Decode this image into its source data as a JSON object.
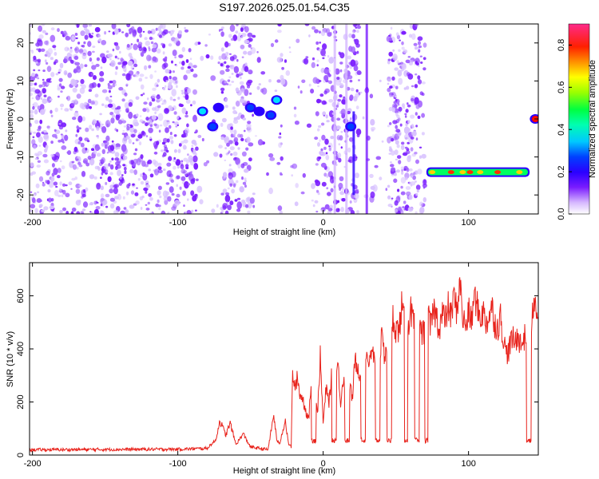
{
  "title": "S197.2026.025.01.54.C35",
  "chart_data": [
    {
      "type": "heatmap",
      "name": "spectrogram",
      "xlabel": "Height of straight line (km)",
      "ylabel": "Frequency (Hz)",
      "xlim": [
        -202,
        148
      ],
      "ylim": [
        -25,
        25
      ],
      "xticks": [
        -200,
        -100,
        0,
        100
      ],
      "yticks": [
        -20,
        -10,
        0,
        10,
        20
      ],
      "colorbar": {
        "label": "Normalized spectral amplitude",
        "range": [
          0.0,
          0.9
        ],
        "ticks": [
          "0.0",
          "0.2",
          "0.4",
          "0.6",
          "0.8"
        ],
        "tick_values": [
          0.0,
          0.2,
          0.4,
          0.6,
          0.8
        ]
      },
      "colormap": [
        "#ffffff",
        "#d6b8ff",
        "#7a1cff",
        "#2a00ff",
        "#0040ff",
        "#00e0ff",
        "#00ff40",
        "#d0ff00",
        "#ff9000",
        "#ff0000",
        "#ff2a8a"
      ],
      "noise_region": {
        "x_from": -202,
        "x_to": 70,
        "max_amplitude": 0.12
      },
      "blank_bands": [
        [
          -87,
          -70
        ],
        [
          -50,
          -30
        ],
        [
          -28,
          -5
        ],
        [
          25,
          45
        ]
      ],
      "features": [
        {
          "name": "blob-1",
          "x": -83,
          "y": 2,
          "amplitude": 0.45
        },
        {
          "name": "blob-2",
          "x": -76,
          "y": -2,
          "amplitude": 0.35
        },
        {
          "name": "blob-3",
          "x": -72,
          "y": 3,
          "amplitude": 0.3
        },
        {
          "name": "blob-4",
          "x": -50,
          "y": 3,
          "amplitude": 0.35
        },
        {
          "name": "blob-5",
          "x": -44,
          "y": 2,
          "amplitude": 0.3
        },
        {
          "name": "blob-6",
          "x": -36,
          "y": 1,
          "amplitude": 0.4
        },
        {
          "name": "blob-7",
          "x": -32,
          "y": 5,
          "amplitude": 0.45
        },
        {
          "name": "blob-8",
          "x": 19,
          "y": -2,
          "amplitude": 0.4
        },
        {
          "name": "blob-9",
          "x": 146,
          "y": 0,
          "amplitude": 0.8
        }
      ],
      "band": {
        "x_from": 71,
        "x_to": 142,
        "y": -14,
        "amplitude": 0.55,
        "hot_x": [
          75,
          88,
          96,
          101,
          108,
          120,
          135
        ]
      },
      "streaks": [
        {
          "x": 21,
          "from": 2,
          "to": -20,
          "amplitude": 0.25
        },
        {
          "x": 30,
          "from": 25,
          "to": -25,
          "amplitude": 0.15
        },
        {
          "x": 8,
          "from": 25,
          "to": -25,
          "amplitude": 0.12
        },
        {
          "x": 16,
          "from": 25,
          "to": -25,
          "amplitude": 0.12
        }
      ]
    },
    {
      "type": "line",
      "name": "snr",
      "xlabel": "Height of straight line (km)",
      "ylabel": "SNR (10 * v/v)",
      "xlim": [
        -202,
        148
      ],
      "ylim": [
        0,
        725
      ],
      "xticks": [
        -200,
        -100,
        0,
        100
      ],
      "yticks": [
        0,
        200,
        400,
        600
      ],
      "color": "#e8231c",
      "series": [
        {
          "name": "SNR",
          "segments": [
            [
              [
                -202,
                20
              ],
              [
                -100,
                22
              ],
              [
                -80,
                25
              ],
              [
                -74,
                55
              ],
              [
                -71,
                130
              ],
              [
                -67,
                75
              ],
              [
                -64,
                120
              ],
              [
                -60,
                40
              ],
              [
                -55,
                80
              ],
              [
                -50,
                30
              ],
              [
                -40,
                22
              ],
              [
                -38,
                20
              ],
              [
                -34,
                150
              ],
              [
                -32,
                60
              ],
              [
                -30,
                40
              ],
              [
                -28,
                90
              ],
              [
                -26,
                130
              ],
              [
                -24,
                45
              ],
              [
                -22,
                30
              ],
              [
                -21,
                310
              ],
              [
                -19,
                240
              ],
              [
                -18,
                300
              ],
              [
                -16,
                230
              ],
              [
                -14,
                210
              ],
              [
                -12,
                170
              ],
              [
                -10,
                130
              ],
              [
                -8,
                300
              ],
              [
                -6,
                240
              ],
              [
                -4,
                150
              ],
              [
                -2,
                370
              ],
              [
                0,
                120
              ],
              [
                2,
                250
              ],
              [
                4,
                200
              ],
              [
                6,
                310
              ],
              [
                8,
                220
              ],
              [
                10,
                350
              ],
              [
                12,
                200
              ],
              [
                14,
                300
              ],
              [
                16,
                240
              ],
              [
                18,
                280
              ],
              [
                20,
                210
              ],
              [
                22,
                360
              ],
              [
                24,
                330
              ],
              [
                26,
                300
              ],
              [
                28,
                310
              ],
              [
                30,
                390
              ],
              [
                32,
                340
              ],
              [
                34,
                400
              ],
              [
                36,
                320
              ],
              [
                38,
                310
              ],
              [
                40,
                440
              ],
              [
                42,
                380
              ],
              [
                44,
                420
              ],
              [
                46,
                320
              ],
              [
                48,
                520
              ],
              [
                50,
                480
              ],
              [
                52,
                460
              ],
              [
                54,
                560
              ],
              [
                56,
                500
              ],
              [
                58,
                470
              ],
              [
                60,
                550
              ],
              [
                62,
                500
              ],
              [
                64,
                480
              ],
              [
                66,
                560
              ],
              [
                68,
                440
              ],
              [
                70,
                490
              ],
              [
                72,
                520
              ],
              [
                74,
                480
              ],
              [
                76,
                550
              ],
              [
                78,
                520
              ],
              [
                80,
                480
              ],
              [
                82,
                540
              ],
              [
                84,
                500
              ],
              [
                86,
                560
              ],
              [
                88,
                520
              ],
              [
                90,
                600
              ],
              [
                92,
                540
              ],
              [
                94,
                660
              ],
              [
                96,
                520
              ],
              [
                98,
                480
              ],
              [
                100,
                540
              ],
              [
                102,
                500
              ],
              [
                104,
                600
              ],
              [
                106,
                560
              ],
              [
                108,
                520
              ],
              [
                110,
                540
              ],
              [
                112,
                500
              ],
              [
                114,
                520
              ],
              [
                116,
                560
              ],
              [
                118,
                500
              ],
              [
                120,
                480
              ],
              [
                122,
                520
              ],
              [
                124,
                440
              ],
              [
                126,
                380
              ],
              [
                128,
                400
              ],
              [
                130,
                440
              ],
              [
                132,
                420
              ],
              [
                134,
                460
              ],
              [
                136,
                410
              ],
              [
                138,
                440
              ],
              [
                140,
                450
              ],
              [
                142,
                420
              ],
              [
                144,
                520
              ],
              [
                146,
                560
              ],
              [
                148,
                540
              ]
            ]
          ],
          "dropouts": [
            [
              -8,
              -5
            ],
            [
              6,
              9
            ],
            [
              15,
              18
            ],
            [
              26,
              29
            ],
            [
              36,
              39
            ],
            [
              44,
              47
            ],
            [
              56,
              58
            ],
            [
              63,
              66
            ],
            [
              70,
              72
            ],
            [
              140,
              143
            ]
          ]
        }
      ]
    }
  ]
}
